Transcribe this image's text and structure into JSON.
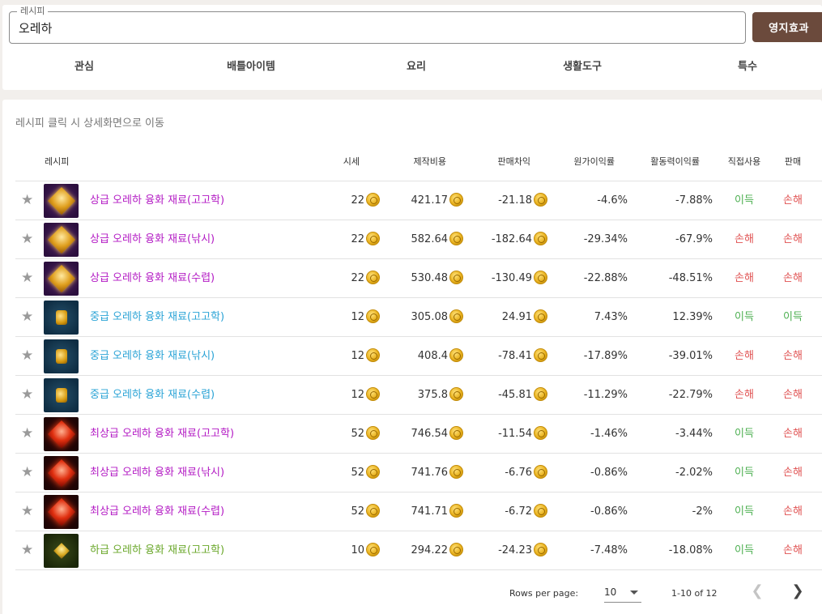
{
  "search": {
    "legend": "레시피",
    "value": "오레하",
    "button_label": "영지효과"
  },
  "tabs": [
    "관심",
    "배틀아이템",
    "요리",
    "생활도구",
    "특수"
  ],
  "hint": "레시피 클릭 시 상세화면으로 이동",
  "columns": {
    "recipe": "레시피",
    "price": "시세",
    "cost": "제작비용",
    "margin": "판매차익",
    "cost_ratio": "원가이익률",
    "energy_ratio": "활동력이익률",
    "direct_use": "직접사용",
    "sell": "판매"
  },
  "colors": {
    "purple": "#b31ac4",
    "blue": "#2aa3d6",
    "green": "#6aa72a",
    "profit": "#4caf50",
    "loss": "#e05252",
    "button": "#6b4a3c"
  },
  "rows": [
    {
      "name": "상급 오레하 융화 재료(고고학)",
      "grade": "purple",
      "price": "22",
      "cost": "421.17",
      "margin": "-21.18",
      "cost_ratio": "-4.6%",
      "energy_ratio": "-7.88%",
      "direct_use": "이득",
      "direct_use_status": "profit",
      "sell": "손해",
      "sell_status": "loss"
    },
    {
      "name": "상급 오레하 융화 재료(낚시)",
      "grade": "purple",
      "price": "22",
      "cost": "582.64",
      "margin": "-182.64",
      "cost_ratio": "-29.34%",
      "energy_ratio": "-67.9%",
      "direct_use": "손해",
      "direct_use_status": "loss",
      "sell": "손해",
      "sell_status": "loss"
    },
    {
      "name": "상급 오레하 융화 재료(수렵)",
      "grade": "purple",
      "price": "22",
      "cost": "530.48",
      "margin": "-130.49",
      "cost_ratio": "-22.88%",
      "energy_ratio": "-48.51%",
      "direct_use": "손해",
      "direct_use_status": "loss",
      "sell": "손해",
      "sell_status": "loss"
    },
    {
      "name": "중급 오레하 융화 재료(고고학)",
      "grade": "blue",
      "price": "12",
      "cost": "305.08",
      "margin": "24.91",
      "cost_ratio": "7.43%",
      "energy_ratio": "12.39%",
      "direct_use": "이득",
      "direct_use_status": "profit",
      "sell": "이득",
      "sell_status": "profit"
    },
    {
      "name": "중급 오레하 융화 재료(낚시)",
      "grade": "blue",
      "price": "12",
      "cost": "408.4",
      "margin": "-78.41",
      "cost_ratio": "-17.89%",
      "energy_ratio": "-39.01%",
      "direct_use": "손해",
      "direct_use_status": "loss",
      "sell": "손해",
      "sell_status": "loss"
    },
    {
      "name": "중급 오레하 융화 재료(수렵)",
      "grade": "blue",
      "price": "12",
      "cost": "375.8",
      "margin": "-45.81",
      "cost_ratio": "-11.29%",
      "energy_ratio": "-22.79%",
      "direct_use": "손해",
      "direct_use_status": "loss",
      "sell": "손해",
      "sell_status": "loss"
    },
    {
      "name": "최상급 오레하 융화 재료(고고학)",
      "grade": "red",
      "price": "52",
      "cost": "746.54",
      "margin": "-11.54",
      "cost_ratio": "-1.46%",
      "energy_ratio": "-3.44%",
      "direct_use": "이득",
      "direct_use_status": "profit",
      "sell": "손해",
      "sell_status": "loss"
    },
    {
      "name": "최상급 오레하 융화 재료(낚시)",
      "grade": "red",
      "price": "52",
      "cost": "741.76",
      "margin": "-6.76",
      "cost_ratio": "-0.86%",
      "energy_ratio": "-2.02%",
      "direct_use": "이득",
      "direct_use_status": "profit",
      "sell": "손해",
      "sell_status": "loss"
    },
    {
      "name": "최상급 오레하 융화 재료(수렵)",
      "grade": "red",
      "price": "52",
      "cost": "741.71",
      "margin": "-6.72",
      "cost_ratio": "-0.86%",
      "energy_ratio": "-2%",
      "direct_use": "이득",
      "direct_use_status": "profit",
      "sell": "손해",
      "sell_status": "loss"
    },
    {
      "name": "하급 오레하 융화 재료(고고학)",
      "grade": "green",
      "price": "10",
      "cost": "294.22",
      "margin": "-24.23",
      "cost_ratio": "-7.48%",
      "energy_ratio": "-18.08%",
      "direct_use": "이득",
      "direct_use_status": "profit",
      "sell": "손해",
      "sell_status": "loss"
    }
  ],
  "pagination": {
    "rows_per_page_label": "Rows per page:",
    "rows_per_page": "10",
    "range": "1-10 of 12"
  }
}
